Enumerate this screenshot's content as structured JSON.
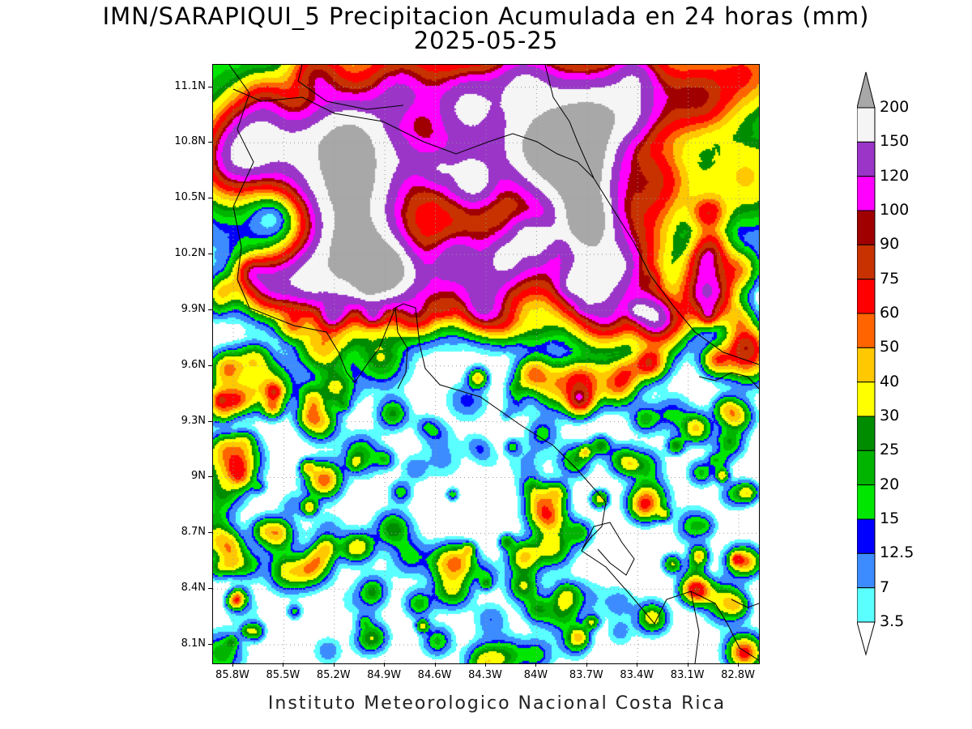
{
  "title": {
    "line1": "IMN/SARAPIQUI_5 Precipitacion Acumulada en 24 horas (mm)",
    "line2": "2025-05-25"
  },
  "footer": "Instituto Meteorologico Nacional Costa Rica",
  "map": {
    "lat_ticks": [
      "11.1N",
      "10.8N",
      "10.5N",
      "10.2N",
      "9.9N",
      "9.6N",
      "9.3N",
      "9N",
      "8.7N",
      "8.4N",
      "8.1N"
    ],
    "lat_values": [
      11.1,
      10.8,
      10.5,
      10.2,
      9.9,
      9.6,
      9.3,
      9.0,
      8.7,
      8.4,
      8.1
    ],
    "lon_ticks": [
      "85.8W",
      "85.5W",
      "85.2W",
      "84.9W",
      "84.6W",
      "84.3W",
      "84W",
      "83.7W",
      "83.4W",
      "83.1W",
      "82.8W"
    ],
    "lon_values": [
      -85.8,
      -85.5,
      -85.2,
      -84.9,
      -84.6,
      -84.3,
      -84.0,
      -83.7,
      -83.4,
      -83.1,
      -82.8
    ],
    "lon_range": [
      -85.92,
      -82.68
    ],
    "lat_range": [
      8.0,
      11.22
    ],
    "gridlines": "dotted"
  },
  "legend": {
    "labels": [
      "200",
      "150",
      "120",
      "100",
      "90",
      "75",
      "60",
      "50",
      "40",
      "30",
      "25",
      "20",
      "15",
      "12.5",
      "7",
      "3.5"
    ],
    "colors": [
      "#f5f5f5",
      "#9a35c8",
      "#ff00ff",
      "#a00000",
      "#c83200",
      "#ff0000",
      "#ff6400",
      "#ffc800",
      "#ffff00",
      "#008c00",
      "#00b400",
      "#00e600",
      "#0000ff",
      "#3c8cff",
      "#5affff"
    ],
    "over_color": "#a8a8a8",
    "under_color": "#ffffff"
  }
}
